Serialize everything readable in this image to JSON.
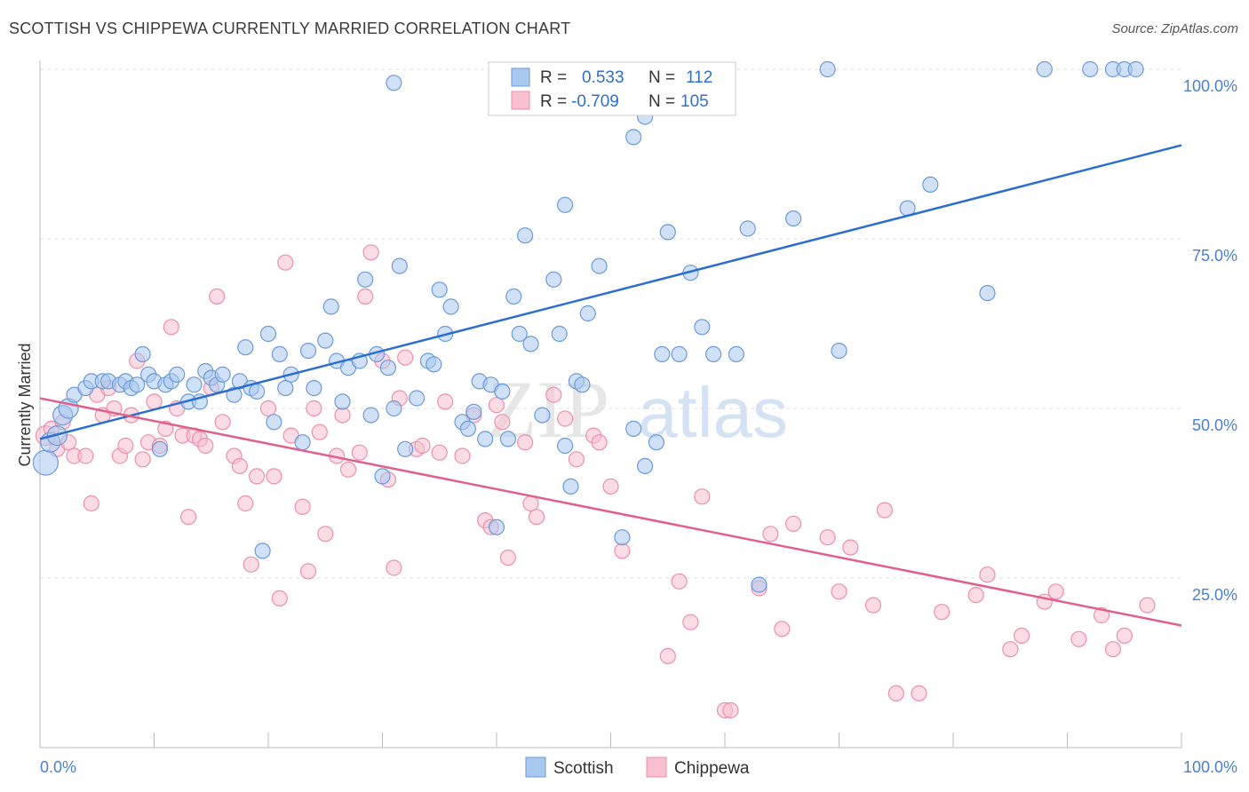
{
  "header": {
    "title": "SCOTTISH VS CHIPPEWA CURRENTLY MARRIED CORRELATION CHART",
    "source": "Source: ZipAtlas.com"
  },
  "watermark": {
    "zip": "ZIP",
    "atlas": "atlas"
  },
  "legend": {
    "r_label": "R =",
    "n_label": "N =",
    "rows": [
      {
        "series": "Scottish",
        "r": "0.533",
        "n": "112"
      },
      {
        "series": "Chippewa",
        "r": "-0.709",
        "n": "105"
      }
    ]
  },
  "colors": {
    "scottish_fill": "#a9c8f0",
    "scottish_stroke": "#6a9ad8",
    "scottish_line": "#2a6fcf",
    "chippewa_fill": "#f7bfd0",
    "chippewa_stroke": "#ec8fac",
    "chippewa_line": "#e0608c",
    "tick_text": "#4a7fd0"
  },
  "chart_data": {
    "type": "scatter",
    "title": "SCOTTISH VS CHIPPEWA CURRENTLY MARRIED CORRELATION CHART",
    "xlabel": "",
    "ylabel": "Currently Married",
    "xlim": [
      0,
      100
    ],
    "ylim": [
      0,
      100
    ],
    "x_tick_labels": [
      "0.0%",
      "100.0%"
    ],
    "y_tick_labels": [
      "25.0%",
      "50.0%",
      "75.0%",
      "100.0%"
    ],
    "y_ticks": [
      25,
      50,
      75,
      100
    ],
    "grid": "horizontal dashed",
    "legend_position": "top-center",
    "series": [
      {
        "name": "Scottish",
        "r": 0.533,
        "n": 112,
        "trend": {
          "x": [
            0,
            100
          ],
          "y": [
            45.5,
            88.8
          ]
        },
        "points": [
          [
            0.5,
            42,
            3
          ],
          [
            0.9,
            45,
            2
          ],
          [
            1.5,
            46,
            2
          ],
          [
            2,
            49,
            2
          ],
          [
            2.5,
            50,
            2
          ],
          [
            3,
            52,
            1
          ],
          [
            4,
            53,
            1
          ],
          [
            4.5,
            54,
            1
          ],
          [
            5.5,
            54,
            1
          ],
          [
            6,
            54,
            1
          ],
          [
            7,
            53.5,
            1
          ],
          [
            7.5,
            54,
            1
          ],
          [
            8,
            53,
            1
          ],
          [
            8.5,
            53.5,
            1
          ],
          [
            9,
            58,
            1
          ],
          [
            9.5,
            55,
            1
          ],
          [
            10,
            54,
            1
          ],
          [
            11,
            53.5,
            1
          ],
          [
            11.5,
            54,
            1
          ],
          [
            12,
            55,
            1
          ],
          [
            13,
            51,
            1
          ],
          [
            13.5,
            53.5,
            1
          ],
          [
            14,
            51,
            1
          ],
          [
            14.5,
            55.5,
            1
          ],
          [
            15,
            54.5,
            1
          ],
          [
            15.5,
            53.5,
            1
          ],
          [
            16,
            55,
            1
          ],
          [
            17,
            52,
            1
          ],
          [
            17.5,
            54,
            1
          ],
          [
            18,
            59,
            1
          ],
          [
            18.5,
            53,
            1
          ],
          [
            19,
            52.5,
            1
          ],
          [
            20,
            61,
            1
          ],
          [
            20.5,
            48,
            1
          ],
          [
            21,
            58,
            1
          ],
          [
            21.5,
            53,
            1
          ],
          [
            22,
            55,
            1
          ],
          [
            23,
            45,
            1
          ],
          [
            23.5,
            58.5,
            1
          ],
          [
            24,
            53,
            1
          ],
          [
            25,
            60,
            1
          ],
          [
            25.5,
            65,
            1
          ],
          [
            26,
            57,
            1
          ],
          [
            26.5,
            51,
            1
          ],
          [
            27,
            56,
            1
          ],
          [
            28,
            57,
            1
          ],
          [
            28.5,
            69,
            1
          ],
          [
            29,
            49,
            1
          ],
          [
            29.5,
            58,
            1
          ],
          [
            30,
            40,
            1
          ],
          [
            30.5,
            56,
            1
          ],
          [
            31,
            50,
            1
          ],
          [
            31.5,
            71,
            1
          ],
          [
            32,
            44,
            1
          ],
          [
            33,
            51.5,
            1
          ],
          [
            34,
            57,
            1
          ],
          [
            34.5,
            56.5,
            1
          ],
          [
            35,
            67.5,
            1
          ],
          [
            35.5,
            61,
            1
          ],
          [
            36,
            65,
            1
          ],
          [
            37,
            48,
            1
          ],
          [
            37.5,
            47,
            1
          ],
          [
            38,
            49.5,
            1
          ],
          [
            38.5,
            54,
            1
          ],
          [
            39,
            45.5,
            1
          ],
          [
            39.5,
            53.5,
            1
          ],
          [
            40,
            32.5,
            1
          ],
          [
            40.5,
            52.5,
            1
          ],
          [
            41,
            45.5,
            1
          ],
          [
            41.5,
            66.5,
            1
          ],
          [
            42,
            61,
            1
          ],
          [
            42.5,
            75.5,
            1
          ],
          [
            43,
            59.5,
            1
          ],
          [
            44,
            49,
            1
          ],
          [
            45,
            69,
            1
          ],
          [
            45.5,
            61,
            1
          ],
          [
            46,
            44.5,
            1
          ],
          [
            46.5,
            38.5,
            1
          ],
          [
            46,
            80,
            1
          ],
          [
            47,
            54,
            1
          ],
          [
            47.5,
            53.5,
            1
          ],
          [
            48,
            64,
            1
          ],
          [
            49,
            71,
            1
          ],
          [
            51,
            31,
            1
          ],
          [
            52,
            47,
            1
          ],
          [
            53,
            41.5,
            1
          ],
          [
            54,
            45,
            1
          ],
          [
            54.5,
            58,
            1
          ],
          [
            55,
            76,
            1
          ],
          [
            56,
            58,
            1
          ],
          [
            57,
            70,
            1
          ],
          [
            58,
            62,
            1
          ],
          [
            59,
            58,
            1
          ],
          [
            61,
            58,
            1
          ],
          [
            62,
            76.5,
            1
          ],
          [
            63,
            24,
            1
          ],
          [
            66,
            78,
            1
          ],
          [
            70,
            58.5,
            1
          ],
          [
            76,
            79.5,
            1
          ],
          [
            78,
            83,
            1
          ],
          [
            83,
            67,
            1
          ],
          [
            88,
            100,
            1
          ],
          [
            92,
            100,
            1
          ],
          [
            94,
            100,
            1
          ],
          [
            95,
            100,
            1
          ],
          [
            96,
            100,
            1
          ],
          [
            31,
            98,
            1
          ],
          [
            46.5,
            99,
            1
          ],
          [
            47,
            99,
            1
          ],
          [
            52,
            90,
            1
          ],
          [
            53,
            93,
            1
          ],
          [
            69,
            100,
            1
          ],
          [
            10.5,
            44,
            1
          ],
          [
            19.5,
            29,
            1
          ]
        ]
      },
      {
        "name": "Chippewa",
        "r": -0.709,
        "n": 105,
        "trend": {
          "x": [
            0,
            100
          ],
          "y": [
            51.5,
            18
          ]
        },
        "points": [
          [
            0.5,
            46,
            2
          ],
          [
            1,
            47,
            1
          ],
          [
            1.5,
            44,
            1
          ],
          [
            2,
            48,
            1
          ],
          [
            2.5,
            45,
            1
          ],
          [
            3,
            43,
            1
          ],
          [
            4,
            43,
            1
          ],
          [
            4.5,
            36,
            1
          ],
          [
            5,
            52,
            1
          ],
          [
            5.5,
            49,
            1
          ],
          [
            6,
            53,
            1
          ],
          [
            6.5,
            50,
            1
          ],
          [
            7,
            43,
            1
          ],
          [
            7.5,
            44.5,
            1
          ],
          [
            8,
            49,
            1
          ],
          [
            8.5,
            57,
            1
          ],
          [
            9,
            42.5,
            1
          ],
          [
            9.5,
            45,
            1
          ],
          [
            10,
            51,
            1
          ],
          [
            10.5,
            44.5,
            1
          ],
          [
            11,
            47,
            1
          ],
          [
            11.5,
            62,
            1
          ],
          [
            12,
            50,
            1
          ],
          [
            12.5,
            46,
            1
          ],
          [
            13,
            34,
            1
          ],
          [
            13.5,
            46,
            1
          ],
          [
            14,
            45.5,
            1
          ],
          [
            14.5,
            44.5,
            1
          ],
          [
            15,
            53,
            1
          ],
          [
            15.5,
            66.5,
            1
          ],
          [
            16,
            48,
            1
          ],
          [
            17,
            43,
            1
          ],
          [
            17.5,
            41.5,
            1
          ],
          [
            18,
            36,
            1
          ],
          [
            18.5,
            27,
            1
          ],
          [
            19,
            40,
            1
          ],
          [
            20,
            50,
            1
          ],
          [
            20.5,
            40,
            1
          ],
          [
            21,
            22,
            1
          ],
          [
            21.5,
            71.5,
            1
          ],
          [
            22,
            46,
            1
          ],
          [
            23,
            35.5,
            1
          ],
          [
            23.5,
            26,
            1
          ],
          [
            24,
            50,
            1
          ],
          [
            24.5,
            46.5,
            1
          ],
          [
            25,
            31.5,
            1
          ],
          [
            26,
            43,
            1
          ],
          [
            26.5,
            49,
            1
          ],
          [
            27,
            41,
            1
          ],
          [
            28,
            43.5,
            1
          ],
          [
            28.5,
            66.5,
            1
          ],
          [
            29,
            73,
            1
          ],
          [
            30,
            57,
            1
          ],
          [
            30.5,
            39.5,
            1
          ],
          [
            31,
            26.5,
            1
          ],
          [
            31.5,
            51.5,
            1
          ],
          [
            32,
            57.5,
            1
          ],
          [
            33,
            44,
            1
          ],
          [
            33.5,
            44.5,
            1
          ],
          [
            35,
            43.5,
            1
          ],
          [
            35.5,
            51,
            1
          ],
          [
            37,
            43,
            1
          ],
          [
            38,
            49,
            1
          ],
          [
            39,
            33.5,
            1
          ],
          [
            39.5,
            32.5,
            1
          ],
          [
            40,
            50.5,
            1
          ],
          [
            40.5,
            48,
            1
          ],
          [
            41,
            28,
            1
          ],
          [
            42.5,
            45,
            1
          ],
          [
            43,
            36,
            1
          ],
          [
            43.5,
            34,
            1
          ],
          [
            45,
            52,
            1
          ],
          [
            46,
            48.5,
            1
          ],
          [
            47,
            42.5,
            1
          ],
          [
            48.5,
            46,
            1
          ],
          [
            49,
            45,
            1
          ],
          [
            50,
            38.5,
            1
          ],
          [
            51,
            29,
            1
          ],
          [
            55,
            13.5,
            1
          ],
          [
            56,
            24.5,
            1
          ],
          [
            57,
            18.5,
            1
          ],
          [
            58,
            37,
            1
          ],
          [
            60,
            5.5,
            1
          ],
          [
            60.5,
            5.5,
            1
          ],
          [
            63,
            23.5,
            1
          ],
          [
            64,
            31.5,
            1
          ],
          [
            65,
            17.5,
            1
          ],
          [
            66,
            33,
            1
          ],
          [
            69,
            31,
            1
          ],
          [
            70,
            23,
            1
          ],
          [
            71,
            29.5,
            1
          ],
          [
            73,
            21,
            1
          ],
          [
            74,
            35,
            1
          ],
          [
            75,
            8,
            1
          ],
          [
            77,
            8,
            1
          ],
          [
            79,
            20,
            1
          ],
          [
            82,
            22.5,
            1
          ],
          [
            83,
            25.5,
            1
          ],
          [
            85,
            14.5,
            1
          ],
          [
            86,
            16.5,
            1
          ],
          [
            88,
            21.5,
            1
          ],
          [
            89,
            23,
            1
          ],
          [
            91,
            16,
            1
          ],
          [
            93,
            19.5,
            1
          ],
          [
            94,
            14.5,
            1
          ],
          [
            95,
            16.5,
            1
          ],
          [
            97,
            21,
            1
          ]
        ]
      }
    ]
  },
  "bottom_legend": [
    "Scottish",
    "Chippewa"
  ]
}
